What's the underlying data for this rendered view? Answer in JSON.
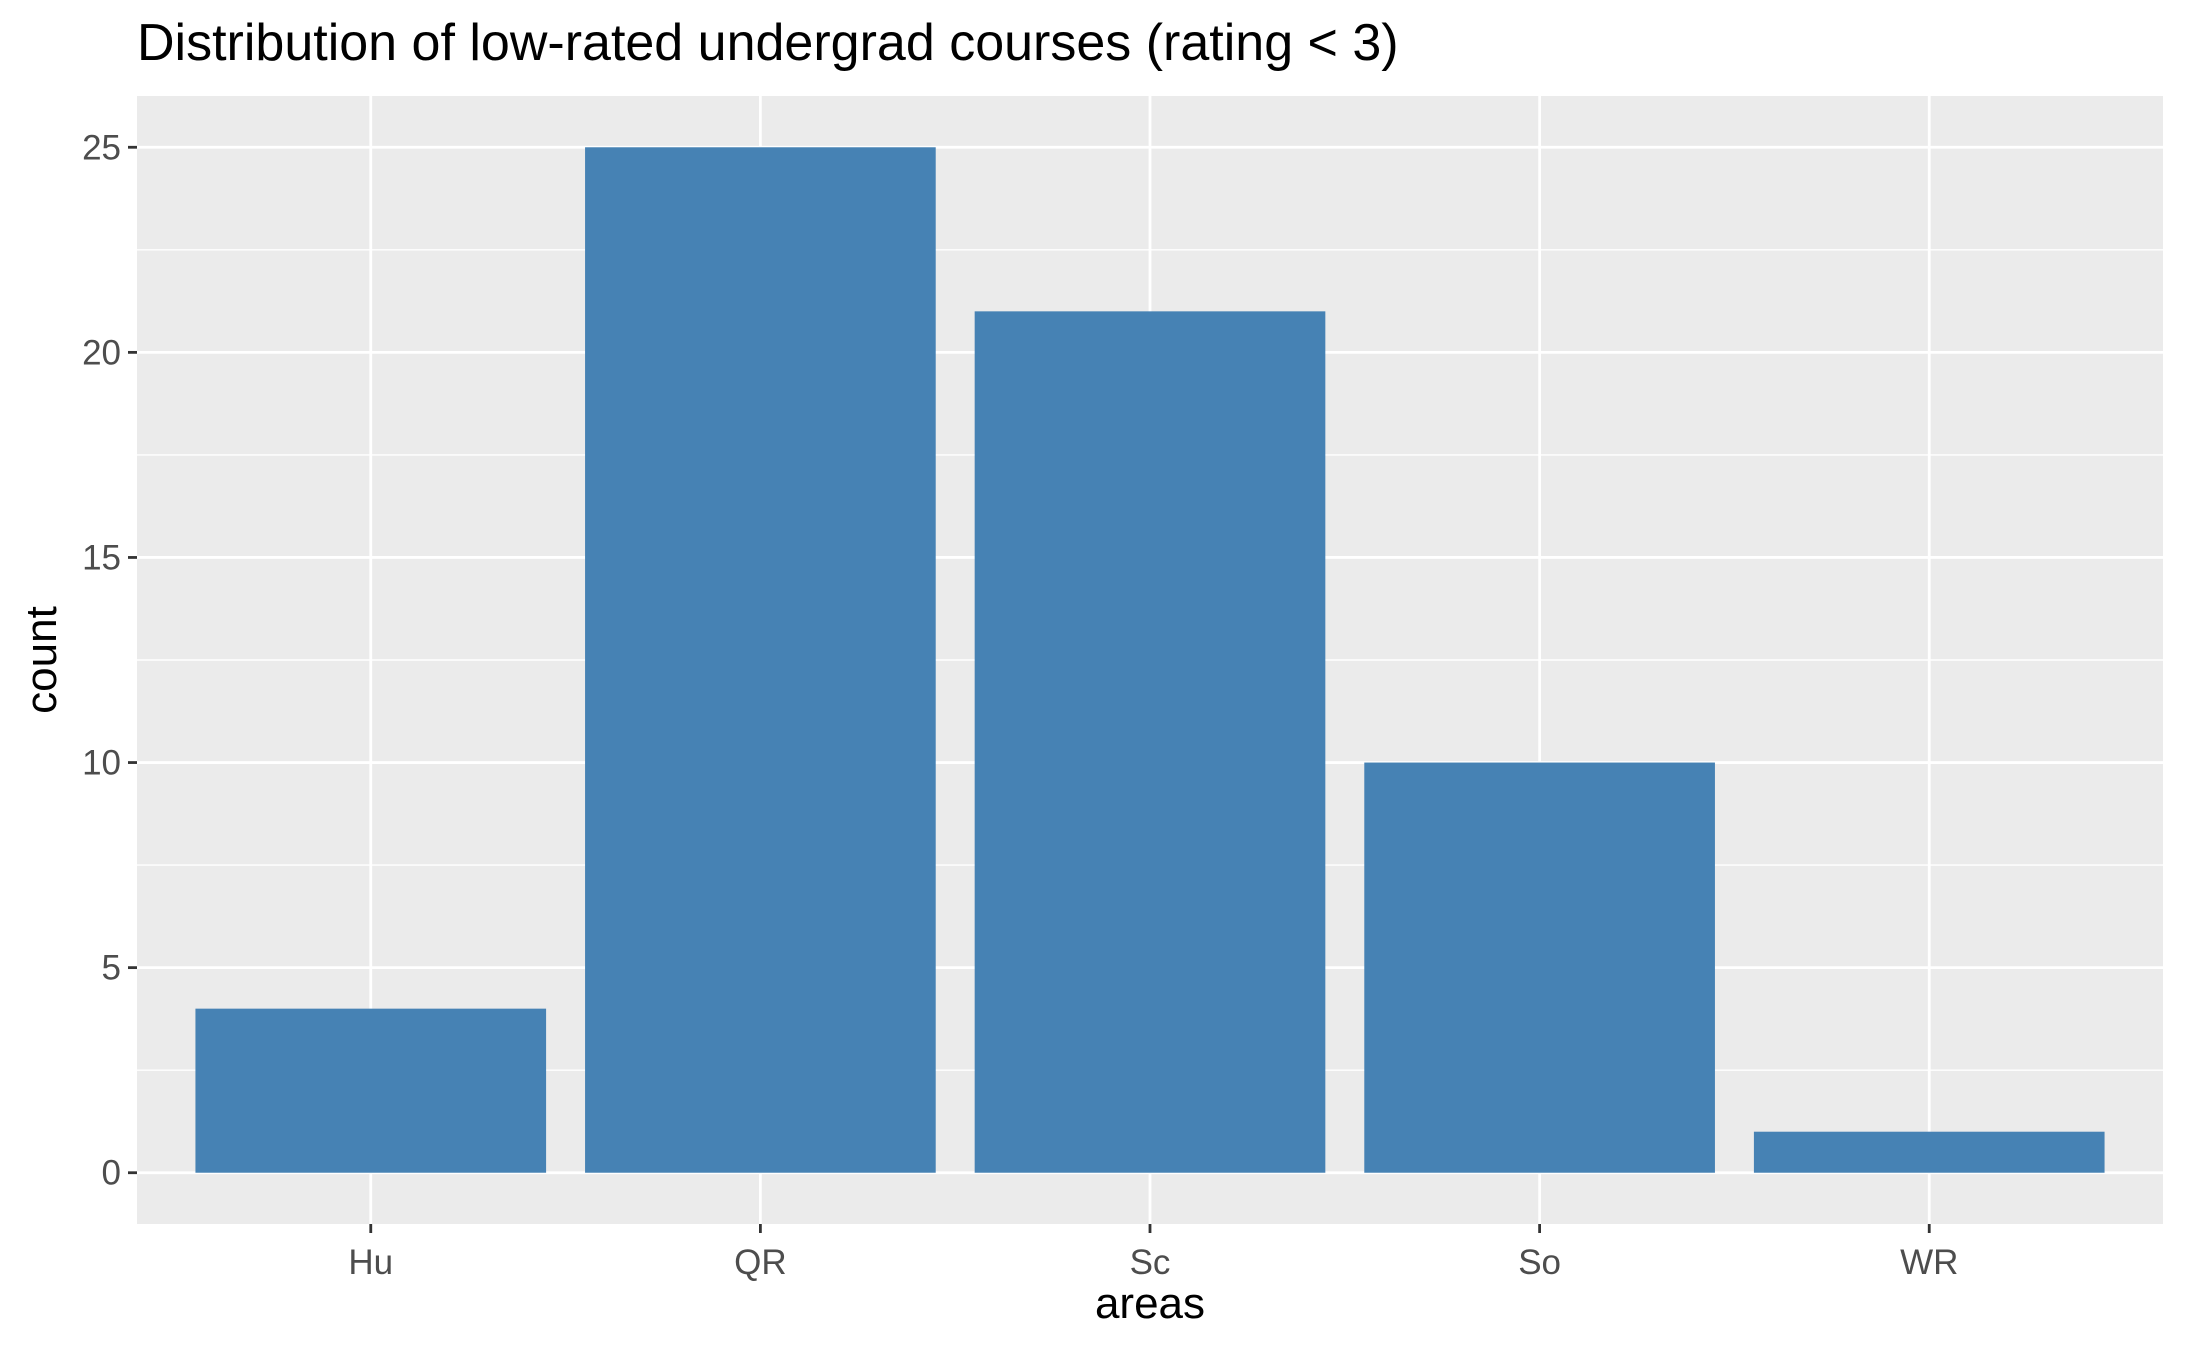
{
  "chart_data": {
    "type": "bar",
    "title": "Distribution of low-rated undergrad courses (rating < 3)",
    "xlabel": "areas",
    "ylabel": "count",
    "categories": [
      "Hu",
      "QR",
      "Sc",
      "So",
      "WR"
    ],
    "values": [
      4,
      25,
      21,
      10,
      1
    ],
    "ylim": [
      -1.25,
      26.25
    ],
    "yticks": [
      0,
      5,
      10,
      15,
      20,
      25
    ],
    "grid": true,
    "legend": "none",
    "colors": {
      "bar": "#4682b4",
      "panel_background": "#ebebeb",
      "gridline": "#ffffff",
      "tick_text": "#4d4d4d",
      "tick_mark": "#333333"
    }
  }
}
